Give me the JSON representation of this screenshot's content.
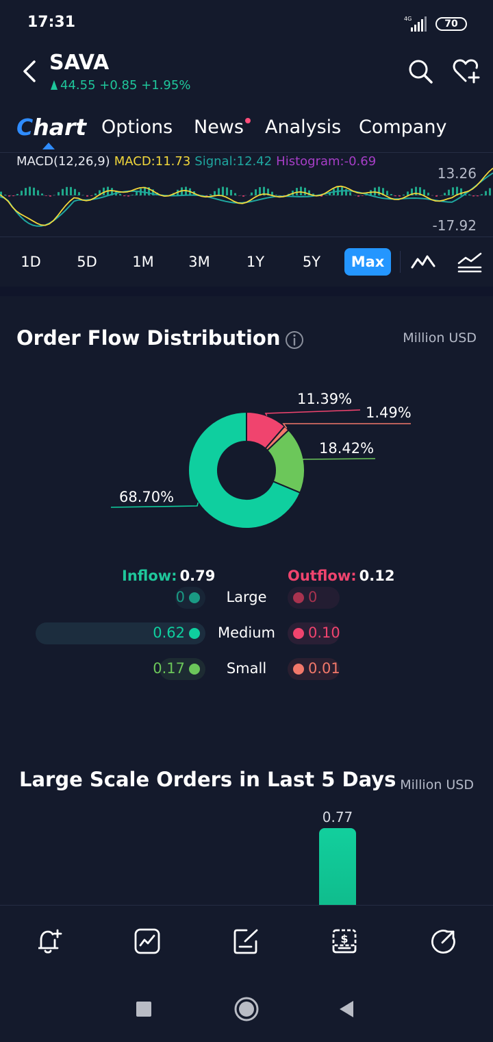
{
  "status": {
    "time": "17:31",
    "network": "4G",
    "battery": "70"
  },
  "header": {
    "ticker": "SAVA",
    "price": "44.55",
    "change": "+0.85",
    "change_pct": "+1.95%"
  },
  "tabs": [
    {
      "label": "Chart",
      "active": true
    },
    {
      "label": "Options"
    },
    {
      "label": "News",
      "has_dot": true
    },
    {
      "label": "Analysis"
    },
    {
      "label": "Company"
    }
  ],
  "macd": {
    "label": "MACD(12,26,9)",
    "macd": "MACD:11.73",
    "signal": "Signal:12.42",
    "histogram": "Histogram:-0.69",
    "max": "13.26",
    "min": "-17.92",
    "colors": {
      "macd": "#f2d83b",
      "signal": "#1fa7a0",
      "hist_pos": "#1fa78a",
      "hist_neg": "#d23c6a"
    }
  },
  "periods": [
    "1D",
    "5D",
    "1M",
    "3M",
    "1Y",
    "5Y",
    "Max"
  ],
  "active_period": "Max",
  "order_flow": {
    "title": "Order Flow Distribution",
    "unit": "Million USD",
    "slices": [
      {
        "label": "11.39%",
        "value": 11.39,
        "color": "#f0446e"
      },
      {
        "label": "1.49%",
        "value": 1.49,
        "color": "#f2786a"
      },
      {
        "label": "18.42%",
        "value": 18.42,
        "color": "#6cc75a"
      },
      {
        "label": "68.70%",
        "value": 68.7,
        "color": "#0fcf9f"
      }
    ],
    "inflow_label": "Inflow:",
    "inflow_value": "0.79",
    "outflow_label": "Outflow:",
    "outflow_value": "0.12",
    "rows": [
      {
        "size": "Large",
        "in": "0",
        "out": "0",
        "in_ratio": 0,
        "out_ratio": 0
      },
      {
        "size": "Medium",
        "in": "0.62",
        "out": "0.10",
        "in_ratio": 1.0,
        "out_ratio": 0.16
      },
      {
        "size": "Small",
        "in": "0.17",
        "out": "0.01",
        "in_ratio": 0.27,
        "out_ratio": 0.02
      }
    ]
  },
  "large_orders": {
    "title": "Large Scale Orders in Last 5 Days",
    "unit": "Million USD",
    "bar_value": "0.77"
  },
  "toolbar": [
    "alert-add-icon",
    "chart-icon",
    "edit-note-icon",
    "trade-dollar-icon",
    "share-icon"
  ]
}
